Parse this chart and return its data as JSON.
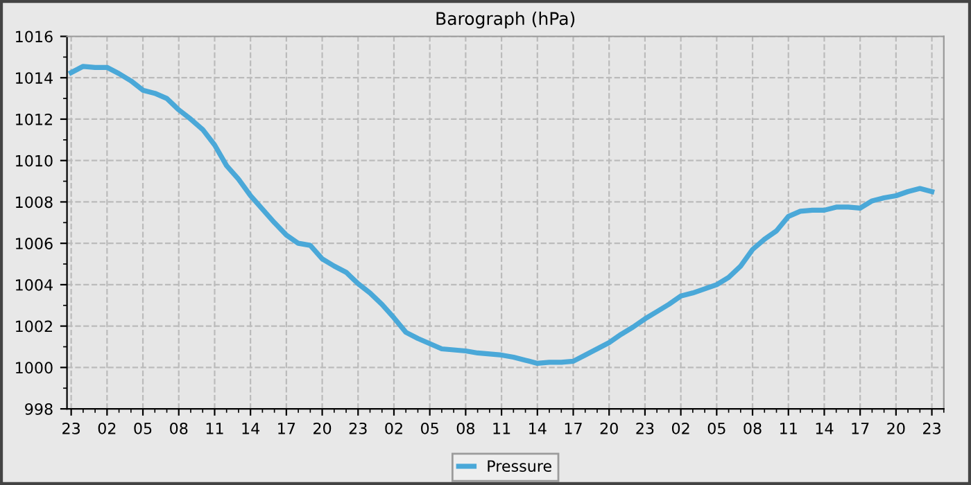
{
  "chart_data": {
    "type": "line",
    "title": "Barograph (hPa)",
    "categories": [
      "23",
      null,
      null,
      "02",
      null,
      null,
      "05",
      null,
      null,
      "08",
      null,
      null,
      "11",
      null,
      null,
      "14",
      null,
      null,
      "17",
      null,
      null,
      "20",
      null,
      null,
      "23",
      null,
      null,
      "02",
      null,
      null,
      "05",
      null,
      null,
      "08",
      null,
      null,
      "11",
      null,
      null,
      "14",
      null,
      null,
      "17",
      null,
      null,
      "20",
      null,
      null,
      "23",
      null,
      null,
      "02",
      null,
      null,
      "05",
      null,
      null,
      "08",
      null,
      null,
      "11",
      null,
      null,
      "14",
      null,
      null,
      "17",
      null,
      null,
      "20",
      null,
      null,
      "23"
    ],
    "series": [
      {
        "name": "Pressure",
        "color": "#4aa8d8",
        "values": [
          1014.25,
          1014.55,
          1014.5,
          1014.5,
          1014.2,
          1013.85,
          1013.4,
          1013.25,
          1013.0,
          1012.45,
          1012.0,
          1011.5,
          1010.75,
          1009.75,
          1009.1,
          1008.3,
          1007.65,
          1007.0,
          1006.4,
          1006.0,
          1005.9,
          1005.25,
          1004.9,
          1004.6,
          1004.05,
          1003.6,
          1003.05,
          1002.4,
          1001.7,
          1001.4,
          1001.15,
          1000.9,
          1000.85,
          1000.8,
          1000.7,
          1000.65,
          1000.6,
          1000.5,
          1000.35,
          1000.2,
          1000.25,
          1000.25,
          1000.3,
          1000.6,
          1000.9,
          1001.2,
          1001.6,
          1001.95,
          1002.35,
          1002.7,
          1003.05,
          1003.45,
          1003.6,
          1003.8,
          1004.0,
          1004.35,
          1004.9,
          1005.7,
          1006.2,
          1006.6,
          1007.3,
          1007.55,
          1007.6,
          1007.6,
          1007.75,
          1007.75,
          1007.7,
          1008.05,
          1008.2,
          1008.3,
          1008.5,
          1008.65,
          1008.5
        ]
      }
    ],
    "ylim": [
      998,
      1016
    ],
    "yticks": [
      998,
      1000,
      1002,
      1004,
      1006,
      1008,
      1010,
      1012,
      1014,
      1016
    ],
    "grid": true,
    "legend": "bottom",
    "marker": "none",
    "line_style": "solid"
  }
}
